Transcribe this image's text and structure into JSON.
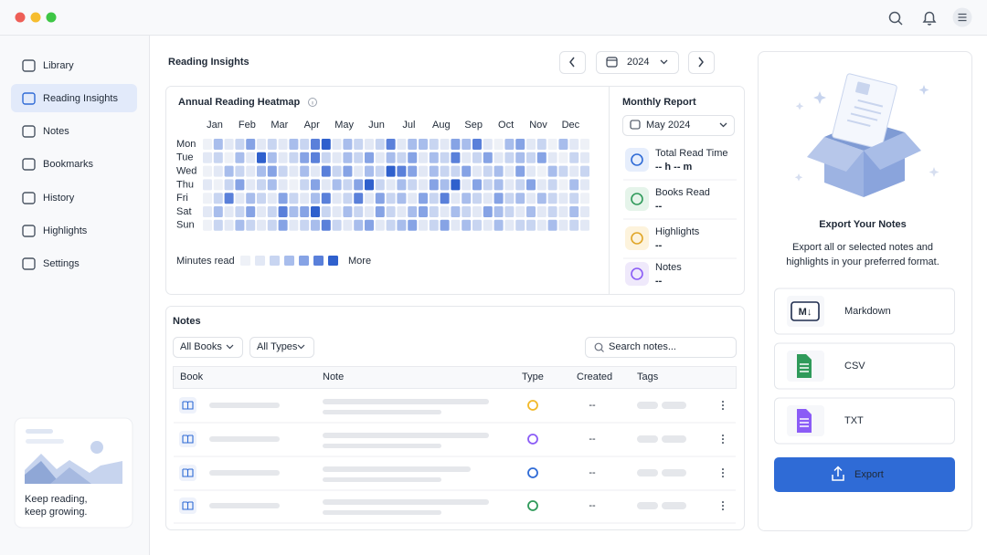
{
  "sidebar": {
    "items": [
      "Library",
      "Reading Insights",
      "Notes",
      "Bookmarks",
      "History",
      "Highlights",
      "Settings"
    ],
    "active": 1,
    "promo": [
      "Keep reading,",
      "keep growing."
    ]
  },
  "header": {
    "title": "Reading Insights",
    "year": "2024"
  },
  "heatmap": {
    "title": "Annual Reading Heatmap",
    "months": [
      "Jan",
      "Feb",
      "Mar",
      "Apr",
      "May",
      "Jun",
      "Jul",
      "Aug",
      "Sep",
      "Oct",
      "Nov",
      "Dec"
    ],
    "days": [
      "Mon",
      "Tue",
      "Wed",
      "Thu",
      "Fri",
      "Sat",
      "Sun"
    ],
    "levels": [
      [
        0,
        3,
        1,
        2,
        4,
        1,
        2,
        1,
        3,
        2,
        5,
        6,
        1,
        3,
        2,
        1,
        2,
        5,
        1,
        3,
        3,
        2,
        1,
        4,
        3,
        5,
        1,
        0,
        3,
        4,
        1,
        2,
        0,
        3,
        1,
        0
      ],
      [
        1,
        2,
        0,
        3,
        1,
        6,
        3,
        1,
        2,
        4,
        5,
        2,
        1,
        3,
        2,
        4,
        1,
        3,
        2,
        4,
        1,
        3,
        2,
        5,
        1,
        2,
        4,
        1,
        2,
        3,
        2,
        4,
        1,
        0,
        2,
        1
      ],
      [
        0,
        1,
        3,
        2,
        1,
        3,
        4,
        2,
        1,
        3,
        1,
        5,
        2,
        4,
        1,
        3,
        2,
        6,
        5,
        4,
        1,
        3,
        2,
        2,
        4,
        1,
        2,
        3,
        1,
        4,
        1,
        0,
        3,
        2,
        1,
        2
      ],
      [
        1,
        0,
        2,
        4,
        1,
        2,
        3,
        1,
        0,
        2,
        4,
        1,
        3,
        2,
        4,
        6,
        2,
        1,
        3,
        2,
        1,
        4,
        3,
        6,
        1,
        4,
        2,
        3,
        1,
        2,
        4,
        1,
        2,
        0,
        3,
        1
      ],
      [
        0,
        2,
        5,
        1,
        3,
        2,
        1,
        4,
        2,
        1,
        3,
        5,
        1,
        2,
        5,
        1,
        4,
        2,
        3,
        1,
        4,
        2,
        5,
        1,
        3,
        2,
        1,
        4,
        2,
        3,
        1,
        3,
        2,
        1,
        2,
        0
      ],
      [
        1,
        3,
        1,
        2,
        4,
        1,
        2,
        5,
        3,
        4,
        6,
        2,
        1,
        3,
        2,
        1,
        4,
        2,
        1,
        3,
        4,
        2,
        1,
        3,
        2,
        1,
        4,
        3,
        2,
        1,
        3,
        1,
        2,
        1,
        3,
        1
      ],
      [
        0,
        2,
        1,
        3,
        2,
        1,
        2,
        4,
        1,
        2,
        3,
        5,
        2,
        1,
        3,
        4,
        1,
        2,
        3,
        4,
        1,
        2,
        4,
        1,
        3,
        2,
        1,
        3,
        1,
        2,
        2,
        1,
        3,
        1,
        2,
        1
      ]
    ],
    "colors": [
      "#eef1f7",
      "#e2e8f5",
      "#c8d5f1",
      "#a8bdec",
      "#86a3e5",
      "#5a80da",
      "#2f60cd"
    ],
    "legend_label": "Minutes read",
    "legend_more": "More"
  },
  "monthly_report": {
    "title": "Monthly Report",
    "month": "May 2024",
    "items": [
      {
        "label": "Total Read Time",
        "value": "-- h -- m"
      },
      {
        "label": "Books Read",
        "value": "--"
      },
      {
        "label": "Highlights",
        "value": "--"
      },
      {
        "label": "Notes",
        "value": "--"
      }
    ]
  },
  "notes": {
    "title": "Notes",
    "filters": [
      "All Books",
      "All Types"
    ],
    "search_placeholder": "Search notes...",
    "columns": [
      "Book",
      "Note",
      "Type",
      "Created",
      "Tags"
    ],
    "rows": [
      {
        "created": "--"
      },
      {
        "created": "--"
      },
      {
        "created": "--"
      },
      {
        "created": "--"
      }
    ]
  },
  "export": {
    "title": "Export Your Notes",
    "description": [
      "Export all or selected notes and",
      "highlights in your preferred format."
    ],
    "formats": [
      {
        "name": "Markdown",
        "badge": "M↓"
      },
      {
        "name": "CSV"
      },
      {
        "name": "TXT"
      }
    ],
    "button": "Export"
  }
}
